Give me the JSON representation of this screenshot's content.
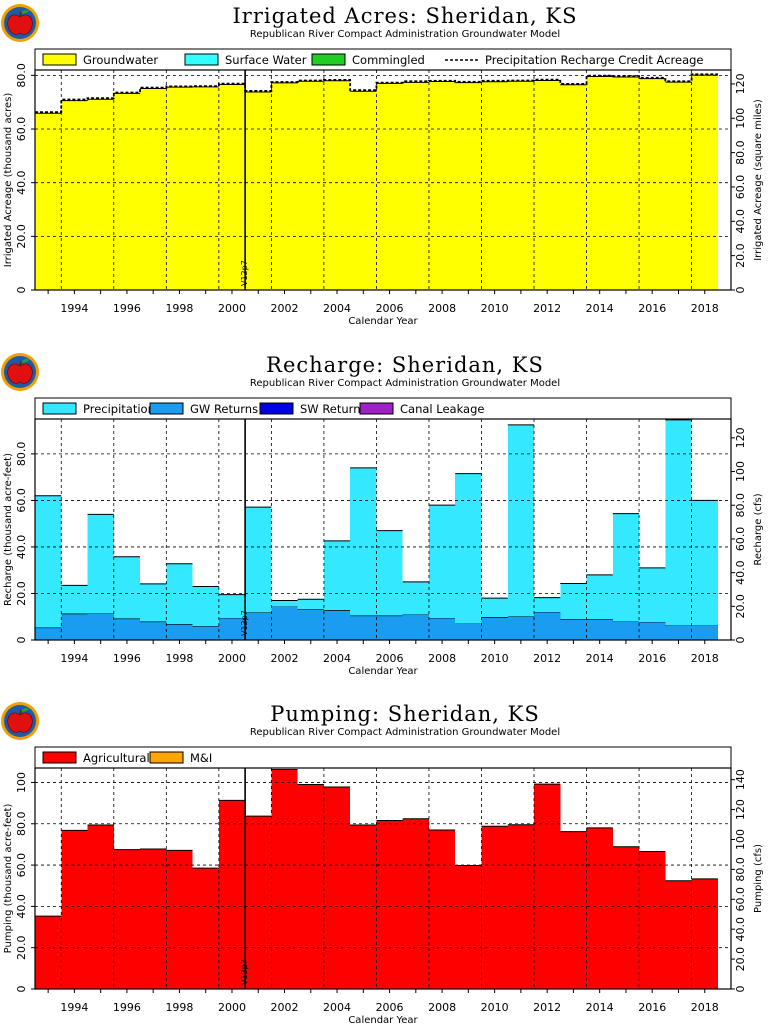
{
  "subtitle": "Republican River Compact Administration Groundwater Model",
  "x_label": "Calendar Year",
  "marker_label": "V12p7",
  "chart_data": [
    {
      "type": "area",
      "title": "Irrigated Acres: Sheridan, KS",
      "ylabel": "Irrigated Acreage (thousand acres)",
      "ylabel2": "Irrigated Acreage (square miles)",
      "xlabel": "Calendar Year",
      "xlim": [
        1992.5,
        2019.0
      ],
      "ylim": [
        0,
        82
      ],
      "ylim2_max": 128.1,
      "y_ticks": [
        0,
        20.0,
        40.0,
        60.0,
        80.0
      ],
      "y_tick_labels": [
        "0",
        "20.0",
        "40.0",
        "60.0",
        "80.0"
      ],
      "y2_ticks": [
        0,
        20.0,
        40.0,
        60.0,
        80.0,
        100,
        120
      ],
      "y2_tick_labels": [
        "0",
        "20.0",
        "40.0",
        "60.0",
        "80.0",
        "100",
        "120"
      ],
      "x_tick_labels": [
        "1994",
        "1996",
        "1998",
        "2000",
        "2002",
        "2004",
        "2006",
        "2008",
        "2010",
        "2012",
        "2014",
        "2016",
        "2018"
      ],
      "grid": true,
      "legend_position": "top",
      "legend": [
        {
          "label": "Groundwater",
          "color": "#ffff00",
          "kind": "box"
        },
        {
          "label": "Surface Water",
          "color": "#33ffff",
          "kind": "box"
        },
        {
          "label": "Commingled",
          "color": "#22cc22",
          "kind": "box"
        },
        {
          "label": "Precipitation Recharge Credit Acreage",
          "color": "#000000",
          "kind": "dash"
        }
      ],
      "years": [
        1993,
        1994,
        1995,
        1996,
        1997,
        1998,
        1999,
        2000,
        2001,
        2002,
        2003,
        2004,
        2005,
        2006,
        2007,
        2008,
        2009,
        2010,
        2011,
        2012,
        2013,
        2014,
        2015,
        2016,
        2017,
        2018
      ],
      "series": [
        {
          "name": "Groundwater",
          "color": "#ffff00",
          "values": [
            65.9,
            70.6,
            71.1,
            73.3,
            75.1,
            75.6,
            75.7,
            76.6,
            73.8,
            77.2,
            77.8,
            78.0,
            74.1,
            77.0,
            77.4,
            77.7,
            77.3,
            77.6,
            77.8,
            78.1,
            76.5,
            79.6,
            79.4,
            78.8,
            77.5,
            80.1
          ]
        },
        {
          "name": "Surface Water",
          "color": "#33ffff",
          "values": [
            0,
            0,
            0,
            0,
            0,
            0,
            0,
            0,
            0,
            0,
            0,
            0,
            0,
            0,
            0,
            0,
            0,
            0,
            0,
            0,
            0,
            0,
            0,
            0,
            0,
            0
          ]
        },
        {
          "name": "Commingled",
          "color": "#22cc22",
          "values": [
            0,
            0,
            0,
            0,
            0,
            0,
            0,
            0,
            0,
            0,
            0,
            0,
            0,
            0,
            0,
            0,
            0,
            0,
            0,
            0,
            0,
            0,
            0,
            0,
            0,
            0
          ]
        }
      ],
      "line_series": {
        "name": "Precipitation Recharge Credit Acreage",
        "values": [
          66.3,
          71.0,
          71.5,
          73.6,
          75.4,
          75.9,
          76.0,
          76.9,
          74.2,
          77.5,
          78.1,
          78.3,
          74.5,
          77.3,
          77.8,
          78.0,
          77.6,
          78.0,
          78.1,
          78.4,
          76.8,
          79.9,
          79.7,
          79.1,
          77.8,
          80.4
        ]
      },
      "marker_year": 2000.5
    },
    {
      "type": "area",
      "title": "Recharge: Sheridan, KS",
      "ylabel": "Recharge (thousand acre-feet)",
      "ylabel2": "Recharge (cfs)",
      "xlabel": "Calendar Year",
      "xlim": [
        1992.5,
        2019.0
      ],
      "ylim": [
        0,
        95
      ],
      "ylim2_max": 131.2,
      "y_ticks": [
        0,
        20.0,
        40.0,
        60.0,
        80.0
      ],
      "y_tick_labels": [
        "0",
        "20.0",
        "40.0",
        "60.0",
        "80.0"
      ],
      "y2_ticks": [
        0,
        20.0,
        40.0,
        60.0,
        80.0,
        100,
        120
      ],
      "y2_tick_labels": [
        "0",
        "20.0",
        "40.0",
        "60.0",
        "80.0",
        "100",
        "120"
      ],
      "x_tick_labels": [
        "1994",
        "1996",
        "1998",
        "2000",
        "2002",
        "2004",
        "2006",
        "2008",
        "2010",
        "2012",
        "2014",
        "2016",
        "2018"
      ],
      "grid": true,
      "legend_position": "top",
      "legend": [
        {
          "label": "Precipitation",
          "color": "#33e8ff",
          "kind": "box"
        },
        {
          "label": "GW Returns",
          "color": "#1a9cf0",
          "kind": "box"
        },
        {
          "label": "SW Returns",
          "color": "#0000e6",
          "kind": "box"
        },
        {
          "label": "Canal Leakage",
          "color": "#a020c8",
          "kind": "box"
        }
      ],
      "years": [
        1993,
        1994,
        1995,
        1996,
        1997,
        1998,
        1999,
        2000,
        2001,
        2002,
        2003,
        2004,
        2005,
        2006,
        2007,
        2008,
        2009,
        2010,
        2011,
        2012,
        2013,
        2014,
        2015,
        2016,
        2017,
        2018
      ],
      "series": [
        {
          "name": "GW Returns",
          "color": "#1a9cf0",
          "values": [
            5.3,
            11.3,
            11.7,
            9.2,
            7.9,
            6.8,
            6.0,
            9.5,
            11.8,
            14.5,
            13.3,
            12.8,
            10.5,
            10.5,
            11.0,
            9.5,
            7.2,
            9.8,
            10.1,
            12.1,
            9.0,
            9.0,
            8.0,
            7.8,
            6.3,
            6.3
          ]
        },
        {
          "name": "Precipitation",
          "color": "#33e8ff",
          "values": [
            56.7,
            12.2,
            42.3,
            26.6,
            16.2,
            26.0,
            17.0,
            10.0,
            45.3,
            2.5,
            4.2,
            29.8,
            63.5,
            36.5,
            14.0,
            48.5,
            64.3,
            8.2,
            82.4,
            6.1,
            15.3,
            19.0,
            46.3,
            23.2,
            88.3,
            53.7
          ]
        },
        {
          "name": "SW Returns",
          "color": "#0000e6",
          "values": [
            0,
            0,
            0,
            0,
            0,
            0,
            0,
            0,
            0,
            0,
            0,
            0,
            0,
            0,
            0,
            0,
            0,
            0,
            0,
            0,
            0,
            0,
            0,
            0,
            0,
            0
          ]
        },
        {
          "name": "Canal Leakage",
          "color": "#a020c8",
          "values": [
            0,
            0,
            0,
            0,
            0,
            0,
            0,
            0,
            0,
            0,
            0,
            0,
            0,
            0,
            0,
            0,
            0,
            0,
            0,
            0,
            0,
            0,
            0,
            0,
            0,
            0
          ]
        }
      ],
      "marker_year": 2000.5
    },
    {
      "type": "area",
      "title": "Pumping: Sheridan, KS",
      "ylabel": "Pumping (thousand acre-feet)",
      "ylabel2": "Pumping (cfs)",
      "xlabel": "Calendar Year",
      "xlim": [
        1992.5,
        2019.0
      ],
      "ylim": [
        0,
        107
      ],
      "ylim2_max": 147.8,
      "y_ticks": [
        0,
        20.0,
        40.0,
        60.0,
        80.0,
        100
      ],
      "y_tick_labels": [
        "0",
        "20.0",
        "40.0",
        "60.0",
        "80.0",
        "100"
      ],
      "y2_ticks": [
        0,
        20.0,
        40.0,
        60.0,
        80.0,
        100,
        120,
        140
      ],
      "y2_tick_labels": [
        "0",
        "20.0",
        "40.0",
        "60.0",
        "80.0",
        "100",
        "120",
        "140"
      ],
      "x_tick_labels": [
        "1994",
        "1996",
        "1998",
        "2000",
        "2002",
        "2004",
        "2006",
        "2008",
        "2010",
        "2012",
        "2014",
        "2016",
        "2018"
      ],
      "grid": true,
      "legend_position": "top",
      "legend": [
        {
          "label": "Agricultural",
          "color": "#ff0000",
          "kind": "box"
        },
        {
          "label": "M&I",
          "color": "#ffa500",
          "kind": "box"
        }
      ],
      "years": [
        1993,
        1994,
        1995,
        1996,
        1997,
        1998,
        1999,
        2000,
        2001,
        2002,
        2003,
        2004,
        2005,
        2006,
        2007,
        2008,
        2009,
        2010,
        2011,
        2012,
        2013,
        2014,
        2015,
        2016,
        2017,
        2018
      ],
      "series": [
        {
          "name": "Agricultural",
          "color": "#ff0000",
          "values": [
            35.3,
            76.8,
            79.4,
            67.5,
            67.8,
            67.1,
            58.5,
            91.3,
            83.7,
            106.3,
            99.0,
            97.8,
            79.4,
            81.6,
            82.4,
            77.0,
            59.8,
            78.8,
            79.5,
            99.2,
            76.2,
            78.0,
            68.9,
            66.6,
            52.4,
            53.3
          ]
        },
        {
          "name": "M&I",
          "color": "#ffa500",
          "values": [
            0,
            0,
            0,
            0,
            0,
            0,
            0,
            0,
            0,
            0,
            0,
            0,
            0,
            0,
            0,
            0,
            0,
            0,
            0,
            0,
            0,
            0,
            0,
            0,
            0,
            0
          ]
        }
      ],
      "marker_year": 2000.5
    }
  ]
}
